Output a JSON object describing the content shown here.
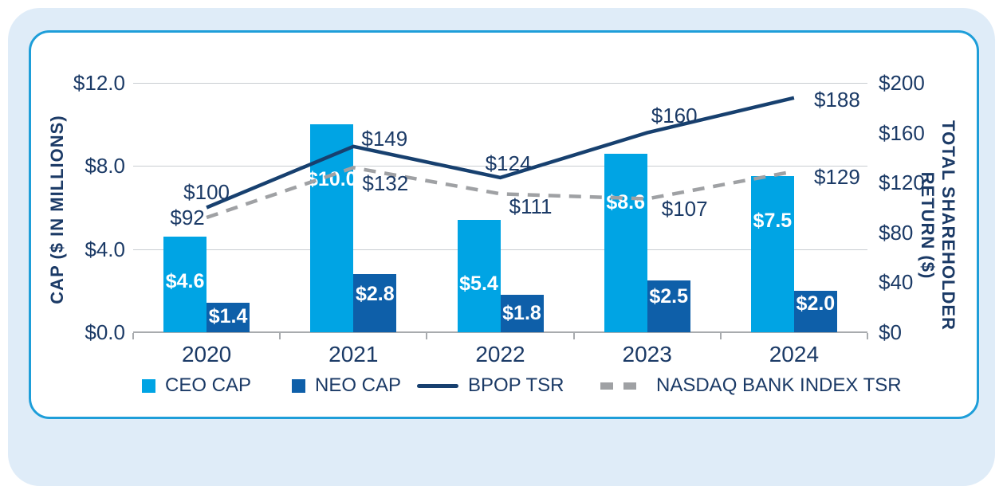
{
  "colors": {
    "light_blue": "#00a4e4",
    "dark_blue": "#0e5fa9",
    "navy": "#1b3a66",
    "navy_line": "#17406f",
    "gray": "#9fa1a4",
    "card_border": "#1e9ed9",
    "outer_bg": "#dfecf8"
  },
  "chart_data": {
    "type": "bar+line",
    "categories": [
      "2020",
      "2021",
      "2022",
      "2023",
      "2024"
    ],
    "bar_series": [
      {
        "name": "CEO CAP",
        "color_key": "light_blue",
        "values": [
          4.6,
          10.0,
          5.4,
          8.6,
          7.5
        ],
        "labels": [
          "$4.6",
          "$10.0",
          "$5.4",
          "$8.6",
          "$7.5"
        ]
      },
      {
        "name": "NEO CAP",
        "color_key": "dark_blue",
        "values": [
          1.4,
          2.8,
          1.8,
          2.5,
          2.0
        ],
        "labels": [
          "$1.4",
          "$2.8",
          "$1.8",
          "$2.5",
          "$2.0"
        ]
      }
    ],
    "line_series": [
      {
        "name": "BPOP TSR",
        "style": "solid",
        "color_key": "navy_line",
        "values": [
          100,
          149,
          124,
          160,
          188
        ],
        "labels": [
          "$100",
          "$149",
          "$124",
          "$160",
          "$188"
        ]
      },
      {
        "name": "NASDAQ BANK INDEX TSR",
        "style": "dashed",
        "color_key": "gray",
        "values": [
          92,
          132,
          111,
          107,
          129
        ],
        "labels": [
          "$92",
          "$132",
          "$111",
          "$107",
          "$129"
        ]
      }
    ],
    "left_axis": {
      "title": "CAP ($ IN MILLIONS)",
      "ticks": [
        "$12.0",
        "$8.0",
        "$4.0",
        "$0.0"
      ],
      "values": [
        12,
        8,
        4,
        0
      ],
      "max": 12
    },
    "right_axis": {
      "title_line1": "TOTAL SHAREHOLDER",
      "title_line2": "RETURN ($)",
      "ticks": [
        "$200",
        "$160",
        "$120",
        "$80",
        "$40",
        "$0"
      ],
      "values": [
        200,
        160,
        120,
        80,
        40,
        0
      ],
      "max": 200
    },
    "legend": [
      {
        "label": "CEO CAP",
        "swatch": "square",
        "color_key": "light_blue"
      },
      {
        "label": "NEO CAP",
        "swatch": "square",
        "color_key": "dark_blue"
      },
      {
        "label": "BPOP TSR",
        "swatch": "line",
        "color_key": "navy_line"
      },
      {
        "label": "NASDAQ BANK INDEX TSR",
        "swatch": "dashes",
        "color_key": "gray"
      }
    ],
    "grid": "horizontal-only",
    "legend_position": "bottom"
  }
}
